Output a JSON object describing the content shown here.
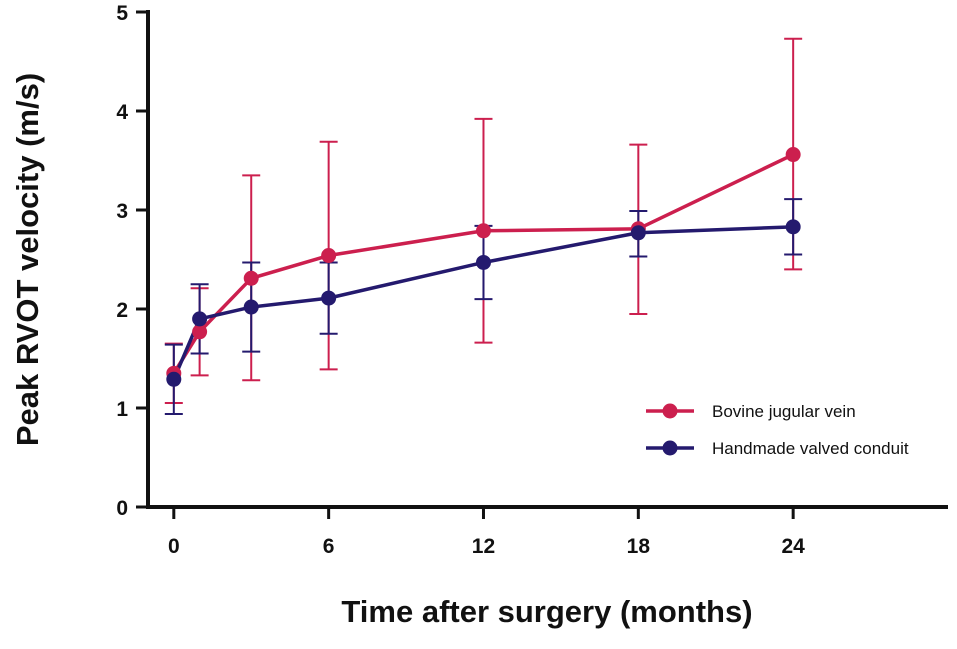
{
  "chart_data": {
    "type": "line",
    "title": "",
    "xlabel": "Time after surgery (months)",
    "ylabel": "Peak RVOT velocity (m/s)",
    "xlim": [
      -1,
      30
    ],
    "ylim": [
      0,
      5
    ],
    "x_ticks": [
      0,
      6,
      12,
      18,
      24
    ],
    "y_ticks": [
      0,
      1,
      2,
      3,
      4,
      5
    ],
    "x_tick_labels": [
      "0",
      "6",
      "12",
      "18",
      "24"
    ],
    "y_tick_labels": [
      "0",
      "1",
      "2",
      "3",
      "4",
      "5"
    ],
    "legend_position": "right",
    "series": [
      {
        "name": "Bovine jugular vein",
        "color": "#cc1f4e",
        "x": [
          0,
          1,
          3,
          6,
          12,
          18,
          24
        ],
        "values": [
          1.35,
          1.77,
          2.31,
          2.54,
          2.79,
          2.81,
          3.56
        ],
        "err_low": [
          1.05,
          1.33,
          1.28,
          1.39,
          1.66,
          1.95,
          2.4
        ],
        "err_high": [
          1.65,
          2.21,
          3.35,
          3.69,
          3.92,
          3.66,
          4.73
        ]
      },
      {
        "name": "Handmade valved conduit",
        "color": "#241a6e",
        "x": [
          0,
          1,
          3,
          6,
          12,
          18,
          24
        ],
        "values": [
          1.29,
          1.9,
          2.02,
          2.11,
          2.47,
          2.77,
          2.83
        ],
        "err_low": [
          0.94,
          1.55,
          1.57,
          1.75,
          2.1,
          2.53,
          2.55
        ],
        "err_high": [
          1.64,
          2.25,
          2.47,
          2.47,
          2.84,
          2.99,
          3.11
        ]
      }
    ]
  }
}
